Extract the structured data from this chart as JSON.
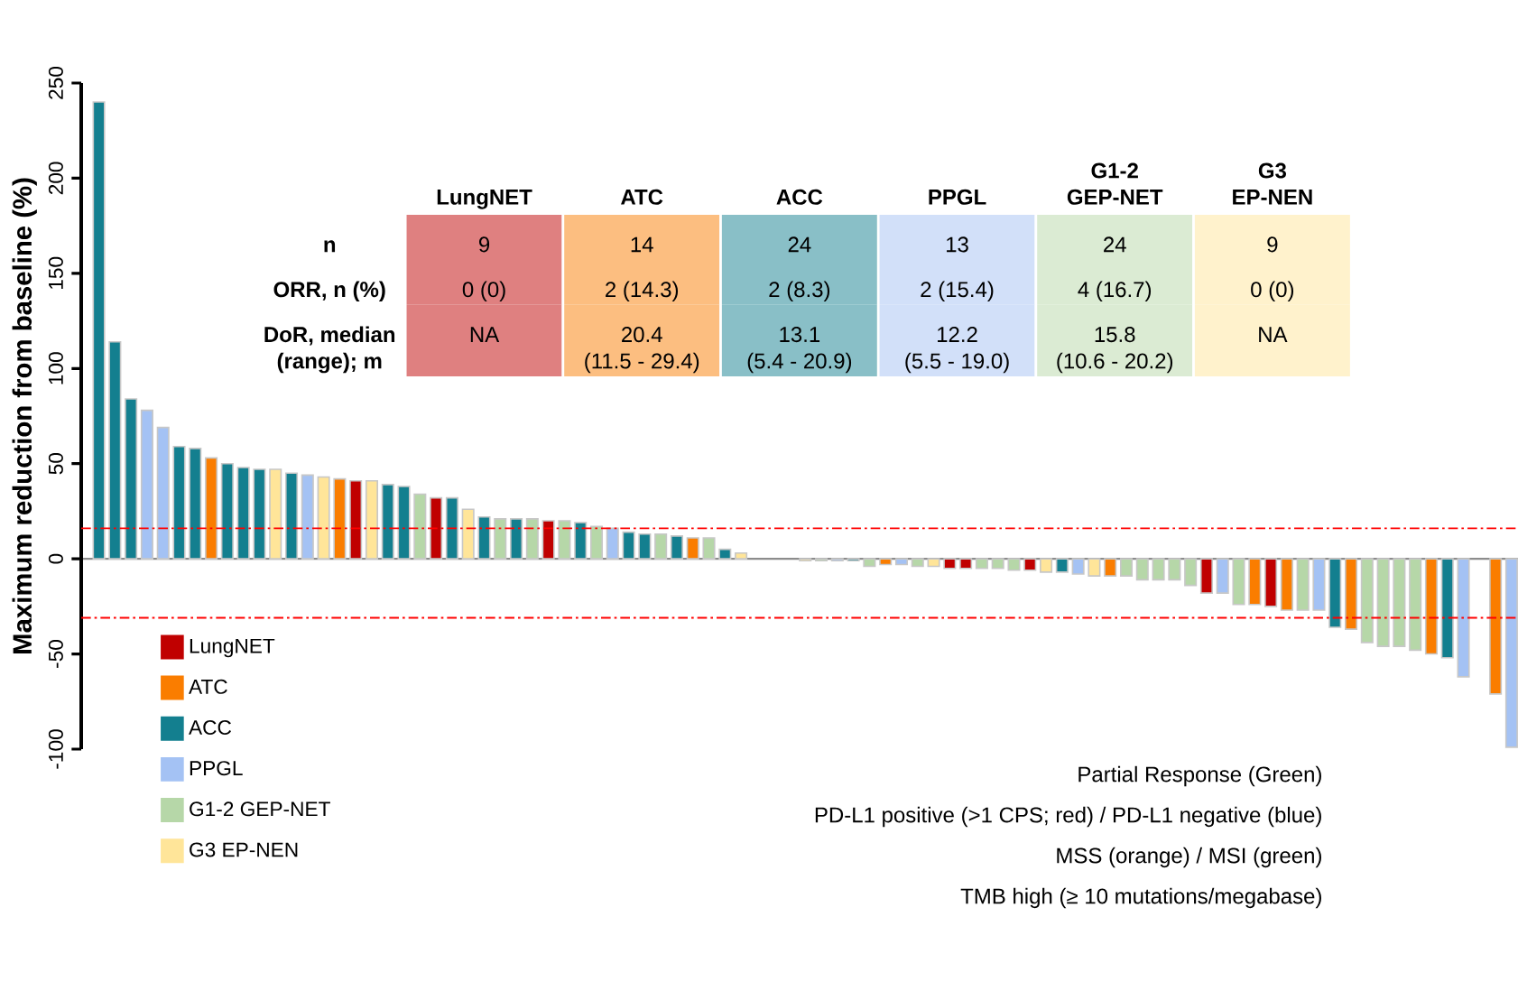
{
  "chart_data": {
    "type": "bar",
    "ylabel": "Maximum reduction from baseline (%)",
    "categories": [
      null,
      null,
      null,
      null,
      null,
      null,
      null,
      null,
      null,
      null,
      null,
      null,
      null,
      null,
      null,
      null,
      null,
      null,
      null,
      null,
      null,
      null,
      null,
      null,
      null,
      null,
      null,
      null,
      null,
      null,
      null,
      null,
      null,
      null,
      null,
      null,
      null,
      null,
      null,
      null,
      null,
      null,
      null,
      null,
      null,
      null,
      null,
      null,
      null,
      null,
      null,
      null,
      null,
      null,
      null,
      null,
      null,
      null,
      null,
      null,
      null,
      null,
      null,
      null,
      null,
      null,
      null,
      null,
      null,
      null,
      null,
      null,
      null,
      null,
      null,
      null,
      null,
      null,
      null,
      null,
      null,
      null,
      null,
      null,
      null,
      null,
      null,
      null,
      null
    ],
    "series": [
      {
        "name": "LungNET",
        "color": "#c00000",
        "values": [
          null,
          null,
          null,
          null,
          null,
          null,
          null,
          null,
          null,
          null,
          null,
          null,
          null,
          null,
          null,
          null,
          41,
          null,
          null,
          null,
          null,
          32,
          null,
          null,
          null,
          null,
          null,
          null,
          20,
          null,
          null,
          null,
          null,
          null,
          null,
          null,
          null,
          null,
          null,
          null,
          null,
          null,
          null,
          null,
          null,
          null,
          null,
          null,
          null,
          null,
          null,
          null,
          null,
          -5,
          -5,
          null,
          null,
          null,
          -6,
          null,
          null,
          null,
          null,
          null,
          null,
          null,
          null,
          null,
          null,
          -18,
          null,
          null,
          null,
          -25,
          null,
          null,
          null,
          null,
          null,
          null,
          null,
          null,
          null,
          null,
          null,
          null,
          null,
          null,
          null
        ]
      },
      {
        "name": "ATC",
        "color": "#fa7d00",
        "values": [
          null,
          null,
          null,
          null,
          null,
          null,
          null,
          53,
          null,
          null,
          null,
          null,
          null,
          null,
          null,
          42,
          null,
          null,
          null,
          null,
          null,
          null,
          null,
          null,
          null,
          null,
          null,
          null,
          null,
          null,
          null,
          null,
          null,
          null,
          null,
          null,
          null,
          11,
          null,
          null,
          null,
          null,
          null,
          null,
          null,
          null,
          null,
          null,
          null,
          -3,
          null,
          null,
          null,
          null,
          null,
          null,
          null,
          null,
          null,
          null,
          null,
          null,
          null,
          -9,
          null,
          null,
          null,
          null,
          null,
          null,
          null,
          null,
          -24,
          null,
          -27,
          null,
          null,
          null,
          -37,
          null,
          null,
          null,
          null,
          -50,
          null,
          null,
          null,
          -71,
          null
        ]
      },
      {
        "name": "ACC",
        "color": "#137f8f",
        "values": [
          240,
          114,
          84,
          null,
          null,
          59,
          58,
          null,
          50,
          48,
          47,
          null,
          45,
          null,
          null,
          null,
          null,
          null,
          39,
          38,
          null,
          null,
          32,
          null,
          22,
          null,
          21,
          null,
          null,
          null,
          19,
          null,
          null,
          14,
          13,
          null,
          12,
          null,
          null,
          5,
          null,
          null,
          null,
          null,
          null,
          null,
          null,
          -1,
          null,
          null,
          null,
          null,
          null,
          null,
          null,
          null,
          null,
          null,
          null,
          null,
          -7,
          null,
          null,
          null,
          null,
          null,
          null,
          null,
          null,
          null,
          null,
          null,
          null,
          null,
          null,
          null,
          null,
          -36,
          null,
          null,
          null,
          null,
          null,
          null,
          -52,
          null,
          null,
          null,
          null
        ]
      },
      {
        "name": "PPGL",
        "color": "#a4c2f4",
        "values": [
          null,
          null,
          null,
          78,
          69,
          null,
          null,
          null,
          null,
          null,
          null,
          null,
          null,
          44,
          null,
          null,
          null,
          null,
          null,
          null,
          null,
          null,
          null,
          null,
          null,
          null,
          null,
          null,
          null,
          null,
          null,
          null,
          16,
          null,
          null,
          null,
          null,
          null,
          null,
          null,
          null,
          null,
          null,
          null,
          null,
          null,
          -1,
          null,
          null,
          null,
          -3,
          null,
          null,
          null,
          null,
          null,
          null,
          null,
          null,
          null,
          null,
          -8,
          null,
          null,
          null,
          null,
          null,
          null,
          null,
          null,
          -18,
          null,
          null,
          null,
          null,
          null,
          -27,
          null,
          null,
          null,
          null,
          null,
          null,
          null,
          null,
          -62,
          null,
          null,
          -99
        ]
      },
      {
        "name": "G1-2 GEP-NET",
        "color": "#b6d7a8",
        "values": [
          null,
          null,
          null,
          null,
          null,
          null,
          null,
          null,
          null,
          null,
          null,
          null,
          null,
          null,
          null,
          null,
          null,
          null,
          null,
          null,
          34,
          null,
          null,
          null,
          null,
          21,
          null,
          21,
          null,
          20,
          null,
          17,
          null,
          null,
          null,
          13,
          null,
          null,
          11,
          null,
          null,
          null,
          null,
          null,
          null,
          -1,
          null,
          null,
          -4,
          null,
          null,
          -4,
          null,
          null,
          null,
          -5,
          -5,
          -6,
          null,
          null,
          null,
          null,
          null,
          null,
          -9,
          -11,
          -11,
          -11,
          -14,
          null,
          null,
          -24,
          null,
          null,
          null,
          -27,
          null,
          null,
          null,
          -44,
          -46,
          -46,
          -48,
          null,
          null,
          null,
          null,
          null,
          null
        ]
      },
      {
        "name": "G3 EP-NEN",
        "color": "#ffe599",
        "values": [
          null,
          null,
          null,
          null,
          null,
          null,
          null,
          null,
          null,
          null,
          null,
          47,
          null,
          null,
          43,
          null,
          null,
          41,
          null,
          null,
          null,
          null,
          null,
          26,
          null,
          null,
          null,
          null,
          null,
          null,
          null,
          null,
          null,
          null,
          null,
          null,
          null,
          null,
          null,
          null,
          3,
          null,
          null,
          null,
          -1,
          null,
          null,
          null,
          null,
          null,
          null,
          null,
          -4,
          null,
          null,
          null,
          null,
          null,
          null,
          -7,
          null,
          null,
          -9,
          null,
          null,
          null,
          null,
          null,
          null,
          null,
          null,
          null,
          null,
          null,
          null,
          null,
          null,
          null,
          null,
          null,
          null,
          null,
          null,
          null,
          null,
          null,
          null,
          null,
          null
        ]
      }
    ],
    "ylim": [
      -100,
      250
    ],
    "yticks": [
      -100,
      -50,
      0,
      50,
      100,
      150,
      200,
      250
    ],
    "legend": "bottom left",
    "ref_lines": [
      {
        "axis": "y",
        "value": 16,
        "color": "#ff0000",
        "line_style": "dashed"
      },
      {
        "axis": "y",
        "value": -31,
        "color": "#ff0000",
        "line_style": "dashed"
      }
    ],
    "annotations": [
      "LungNET",
      "ATC",
      "ACC",
      "PPGL",
      "G1-2 GEP-NET",
      "G3 EP-NEN",
      "n",
      "ORR, n (%)",
      "DoR, median (range); m",
      "9",
      "14",
      "24",
      "13",
      "24",
      "9",
      "0 (0)",
      "2 (14.3)",
      "2 (8.3)",
      "2 (15.4)",
      "4 (16.7)",
      "0 (0)",
      "NA",
      "20.4 (11.5 - 29.4)",
      "13.1 (5.4 - 20.9)",
      "12.2 (5.5 - 19.0)",
      "15.8 (10.6 - 20.2)",
      "NA",
      "Partial Response (Green)",
      "PD-L1 positive (>1 CPS; red) / PD-L1 negative (blue)",
      "MSS (orange) / MSI (green)",
      "TMB high (≥ 10 mutations/megabase)"
    ]
  }
}
